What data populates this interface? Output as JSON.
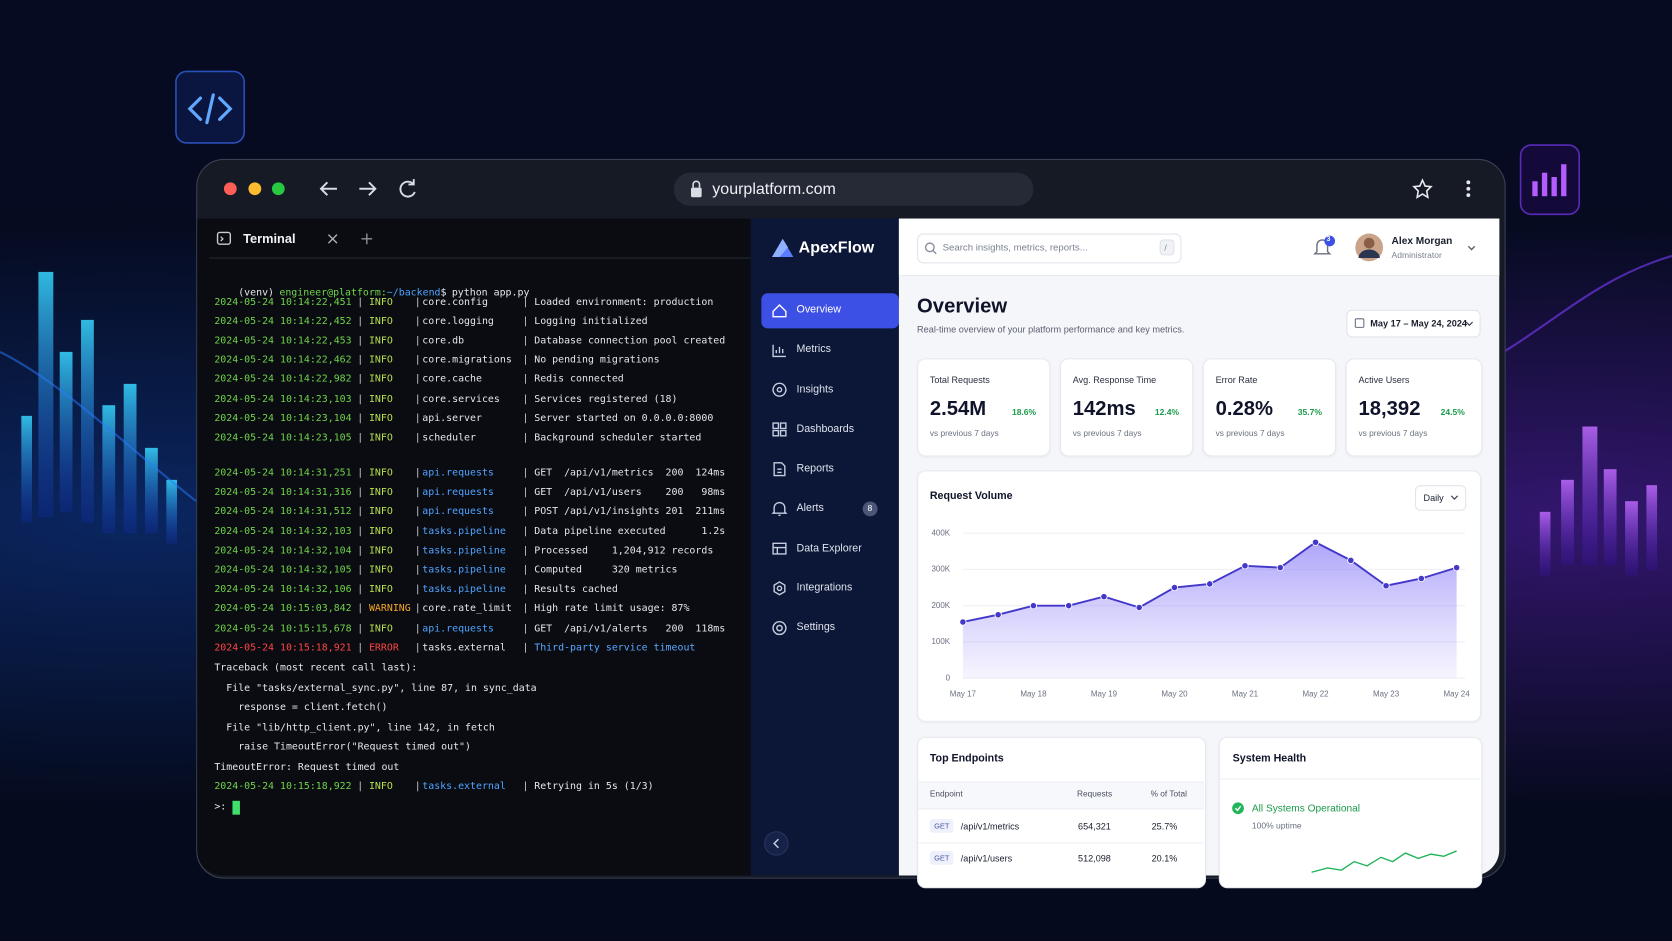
{
  "browser": {
    "url": "yourplatform.com"
  },
  "terminal": {
    "tab_title": "Terminal",
    "separator": "|",
    "prompt": {
      "venv": "(venv)",
      "user": "engineer@platform:",
      "path": "~/backend",
      "symbol": "$",
      "command": "python app.py"
    },
    "startup_logs": [
      {
        "time": "2024-05-24 10:14:22,451",
        "level": "INFO",
        "module": "core.config",
        "message": "Loaded environment: production"
      },
      {
        "time": "2024-05-24 10:14:22,452",
        "level": "INFO",
        "module": "core.logging",
        "message": "Logging initialized"
      },
      {
        "time": "2024-05-24 10:14:22,453",
        "level": "INFO",
        "module": "core.db",
        "message": "Database connection pool created"
      },
      {
        "time": "2024-05-24 10:14:22,462",
        "level": "INFO",
        "module": "core.migrations",
        "message": "No pending migrations"
      },
      {
        "time": "2024-05-24 10:14:22,982",
        "level": "INFO",
        "module": "core.cache",
        "message": "Redis connected"
      },
      {
        "time": "2024-05-24 10:14:23,103",
        "level": "INFO",
        "module": "core.services",
        "message": "Services registered (18)"
      },
      {
        "time": "2024-05-24 10:14:23,104",
        "level": "INFO",
        "module": "api.server",
        "message": "Server started on 0.0.0.0:8000"
      },
      {
        "time": "2024-05-24 10:14:23,105",
        "level": "INFO",
        "module": "scheduler",
        "message": "Background scheduler started"
      }
    ],
    "request_logs": [
      {
        "time": "2024-05-24 10:14:31,251",
        "level": "INFO",
        "module": "api.requests",
        "message": "GET  /api/v1/metrics  200  124ms"
      },
      {
        "time": "2024-05-24 10:14:31,316",
        "level": "INFO",
        "module": "api.requests",
        "message": "GET  /api/v1/users    200   98ms"
      },
      {
        "time": "2024-05-24 10:14:31,512",
        "level": "INFO",
        "module": "api.requests",
        "message": "POST /api/v1/insights 201  211ms"
      },
      {
        "time": "2024-05-24 10:14:32,103",
        "level": "INFO",
        "module": "tasks.pipeline",
        "message": "Data pipeline executed      1.2s"
      },
      {
        "time": "2024-05-24 10:14:32,104",
        "level": "INFO",
        "module": "tasks.pipeline",
        "message": "Processed    1,204,912 records"
      },
      {
        "time": "2024-05-24 10:14:32,105",
        "level": "INFO",
        "module": "tasks.pipeline",
        "message": "Computed     320 metrics"
      },
      {
        "time": "2024-05-24 10:14:32,106",
        "level": "INFO",
        "module": "tasks.pipeline",
        "message": "Results cached"
      },
      {
        "time": "2024-05-24 10:15:03,842",
        "level": "WARNING",
        "module": "core.rate_limit",
        "message": "High rate limit usage: 87%"
      },
      {
        "time": "2024-05-24 10:15:15,678",
        "level": "INFO",
        "module": "api.requests",
        "message": "GET  /api/v1/alerts   200  118ms"
      },
      {
        "time": "2024-05-24 10:15:18,921",
        "level": "ERROR",
        "module": "tasks.external",
        "message": "Third-party service timeout"
      }
    ],
    "traceback": [
      "Traceback (most recent call last):",
      "  File \"tasks/external_sync.py\", line 87, in sync_data",
      "    response = client.fetch()",
      "  File \"lib/http_client.py\", line 142, in fetch",
      "    raise TimeoutError(\"Request timed out\")",
      "TimeoutError: Request timed out"
    ],
    "retry_log": {
      "time": "2024-05-24 10:15:18,922",
      "level": "INFO",
      "module": "tasks.external",
      "message": "Retrying in 5s (1/3)"
    },
    "cursor_prompt": ">:"
  },
  "app": {
    "brand": "ApexFlow",
    "nav": [
      {
        "label": "Overview",
        "active": true
      },
      {
        "label": "Metrics"
      },
      {
        "label": "Insights"
      },
      {
        "label": "Dashboards"
      },
      {
        "label": "Reports"
      },
      {
        "label": "Alerts",
        "badge": 8
      },
      {
        "label": "Data Explorer"
      },
      {
        "label": "Integrations"
      },
      {
        "label": "Settings"
      }
    ],
    "search_placeholder": "Search insights, metrics, reports...",
    "search_shortcut": "/",
    "notifications": 3,
    "user": {
      "name": "Alex Morgan",
      "role": "Administrator"
    }
  },
  "overview": {
    "title": "Overview",
    "subtitle": "Real-time overview of your platform performance and key metrics.",
    "date_range": "May 17 – May 24, 2024",
    "kpis": [
      {
        "label": "Total Requests",
        "value": "2.54M",
        "change": "18.6%",
        "trend": "up",
        "note": "vs previous 7 days"
      },
      {
        "label": "Avg. Response Time",
        "value": "142ms",
        "change": "12.4%",
        "trend": "down",
        "note": "vs previous 7 days"
      },
      {
        "label": "Error Rate",
        "value": "0.28%",
        "change": "35.7%",
        "trend": "down",
        "note": "vs previous 7 days"
      },
      {
        "label": "Active Users",
        "value": "18,392",
        "change": "24.5%",
        "trend": "up",
        "note": "vs previous 7 days"
      }
    ],
    "request_volume_period": "Daily",
    "top_endpoints": {
      "title": "Top Endpoints",
      "columns": [
        "Endpoint",
        "Requests",
        "% of Total"
      ],
      "rows": [
        {
          "method": "GET",
          "path": "/api/v1/metrics",
          "requests": "654,321",
          "share": "25.7%"
        },
        {
          "method": "GET",
          "path": "/api/v1/users",
          "requests": "512,098",
          "share": "20.1%"
        }
      ]
    },
    "system_health": {
      "title": "System Health",
      "status": "All Systems Operational",
      "uptime": "100% uptime"
    }
  },
  "chart_data": {
    "type": "area",
    "title": "Request Volume",
    "categories": [
      "May 17",
      null,
      "May 18",
      null,
      "May 19",
      null,
      "May 20",
      null,
      "May 21",
      null,
      "May 22",
      null,
      "May 23",
      null,
      "May 24"
    ],
    "values": [
      155000,
      175000,
      200000,
      200000,
      225000,
      195000,
      250000,
      260000,
      310000,
      305000,
      375000,
      325000,
      255000,
      275000,
      305000
    ],
    "color": "#4338ca",
    "ylim": [
      0,
      400000
    ],
    "yticks": [
      0,
      {
        "value": 100000,
        "label": "100K"
      },
      {
        "value": 200000,
        "label": "200K"
      },
      {
        "value": 300000,
        "label": "300K"
      },
      {
        "value": 400000,
        "label": "400K"
      }
    ],
    "grid": true
  }
}
